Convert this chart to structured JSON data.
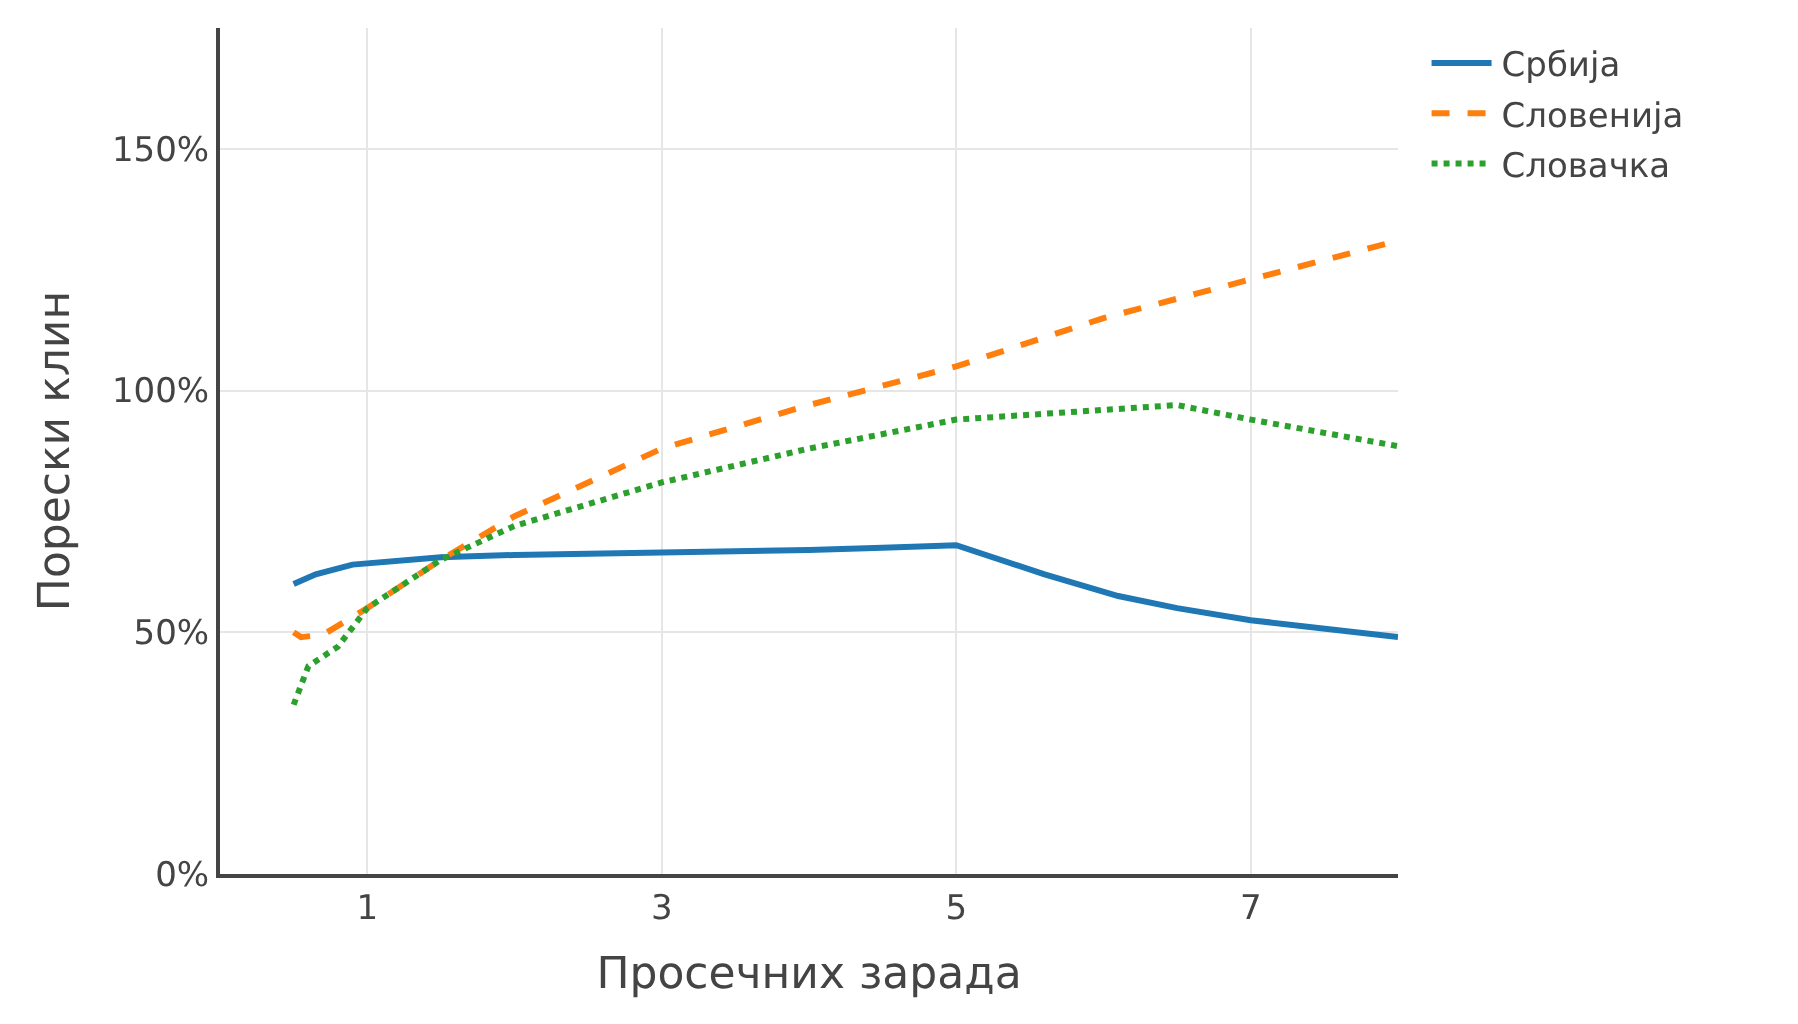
{
  "chart_data": {
    "type": "line",
    "xlabel": "Просечних зарада",
    "ylabel": "Порески клин",
    "xlim": [
      0,
      8
    ],
    "xticks": [
      1,
      3,
      5,
      7
    ],
    "ylim": [
      0,
      175
    ],
    "yticks": [
      {
        "value": 0,
        "label": "0%"
      },
      {
        "value": 50,
        "label": "50%"
      },
      {
        "value": 100,
        "label": "100%"
      },
      {
        "value": 150,
        "label": "150%"
      }
    ],
    "grid": true,
    "legend": "top right",
    "series": [
      {
        "name": "Србија",
        "color": "#1f77b4",
        "line_style": "solid",
        "x": [
          0.5,
          0.65,
          0.9,
          1.5,
          2,
          3,
          4,
          4.5,
          5,
          5.6,
          6.1,
          6.5,
          7,
          8
        ],
        "values": [
          60,
          62,
          64,
          65.5,
          66,
          66.5,
          67,
          67.5,
          68,
          62,
          57.5,
          55,
          52.5,
          49
        ]
      },
      {
        "name": "Словенија",
        "color": "#ff7f0e",
        "line_style": "dashed",
        "x": [
          0.5,
          0.55,
          0.7,
          1,
          1.5,
          2,
          3,
          4,
          5,
          6,
          7,
          8
        ],
        "values": [
          50,
          49,
          49.5,
          55,
          65,
          74,
          88,
          97,
          105,
          115,
          123,
          131
        ]
      },
      {
        "name": "Словачка",
        "color": "#2ca02c",
        "line_style": "dotted",
        "x": [
          0.5,
          0.6,
          0.8,
          1,
          1.5,
          2,
          3,
          4,
          5,
          6,
          6.5,
          7,
          8
        ],
        "values": [
          35,
          43,
          47,
          55,
          65,
          72,
          81,
          88,
          94,
          96,
          97,
          94,
          88.5
        ]
      }
    ]
  }
}
